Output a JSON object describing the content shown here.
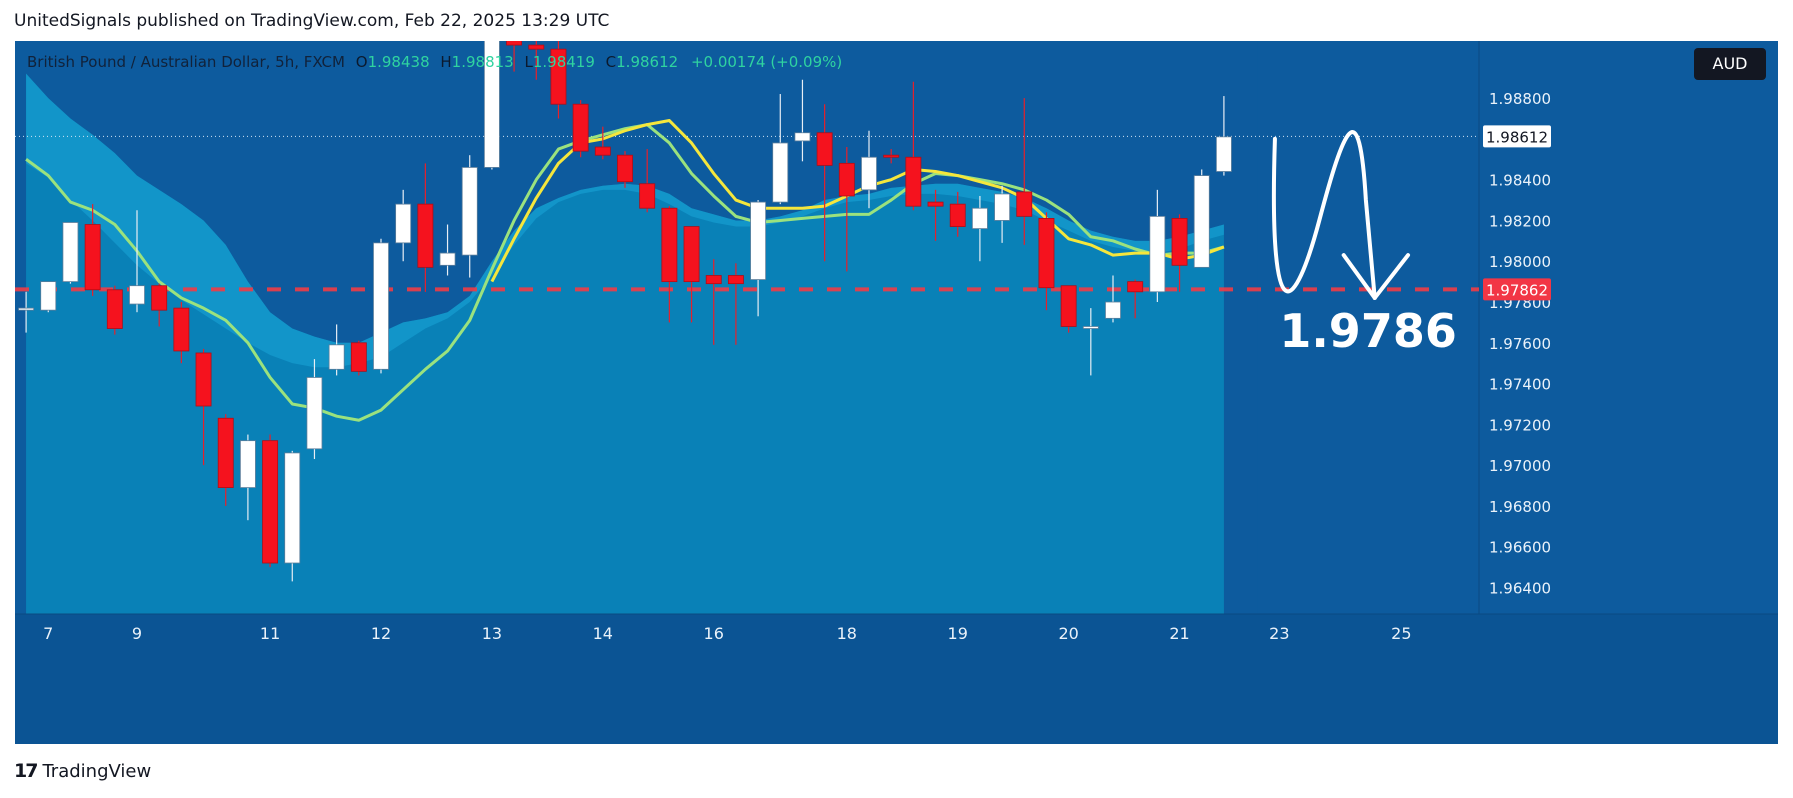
{
  "publisher_line": "UnitedSignals published on TradingView.com, Feb 22, 2025 13:29 UTC",
  "header": {
    "symbol": "British Pound / Australian Dollar, 5h, FXCM",
    "open_label": "O",
    "open": "1.98438",
    "high_label": "H",
    "high": "1.98813",
    "low_label": "L",
    "low": "1.98419",
    "close_label": "C",
    "close": "1.98612",
    "change": "+0.00174 (+0.09%)"
  },
  "currency_badge": "AUD",
  "footer": {
    "logo": "𝟭𝟳",
    "brand": "TradingView"
  },
  "colors": {
    "background": "#0d5b9e",
    "cloud_fill": "#0a84b8",
    "up_candle": "#ffffff",
    "down_candle": "#f5121e",
    "ma_yellow": "#f5e63c",
    "ma_green": "#9be27e",
    "target_line": "#f03c46"
  },
  "chart_data": {
    "type": "candlestick",
    "symbol": "British Pound / Australian Dollar, 5h, FXCM",
    "y_ticks": [
      1.988,
      1.986,
      1.984,
      1.982,
      1.98,
      1.978,
      1.976,
      1.974,
      1.972,
      1.97,
      1.968,
      1.966,
      1.964
    ],
    "y_tick_labels": [
      "1.98800",
      "1.98600",
      "1.98400",
      "1.98200",
      "1.98000",
      "1.97800",
      "1.97600",
      "1.97400",
      "1.97200",
      "1.97000",
      "1.96800",
      "1.96600",
      "1.96400"
    ],
    "ylim": [
      1.9627,
      1.9908
    ],
    "x_labels": [
      "7",
      "9",
      "11",
      "12",
      "13",
      "14",
      "16",
      "18",
      "19",
      "20",
      "21",
      "23",
      "25"
    ],
    "x_label_index": [
      1,
      5,
      11,
      16,
      21,
      26,
      31,
      37,
      42,
      47,
      52,
      56.5,
      62
    ],
    "x_range": [
      -0.5,
      65.5
    ],
    "future_start_index": 55.5,
    "candles": [
      [
        1.9777,
        1.9777,
        1.9785,
        1.9765
      ],
      [
        1.9776,
        1.979,
        1.979,
        1.9775
      ],
      [
        1.979,
        1.9819,
        1.9819,
        1.9789
      ],
      [
        1.9818,
        1.9786,
        1.9828,
        1.9783
      ],
      [
        1.9786,
        1.9767,
        1.9788,
        1.9764
      ],
      [
        1.9779,
        1.9788,
        1.9825,
        1.9775
      ],
      [
        1.9788,
        1.9776,
        1.9789,
        1.9768
      ],
      [
        1.9777,
        1.9756,
        1.978,
        1.975
      ],
      [
        1.9755,
        1.9729,
        1.9757,
        1.97
      ],
      [
        1.9723,
        1.9689,
        1.9725,
        1.968
      ],
      [
        1.9689,
        1.9712,
        1.9715,
        1.9673
      ],
      [
        1.9712,
        1.9652,
        1.9715,
        1.965
      ],
      [
        1.9652,
        1.9706,
        1.9707,
        1.9643
      ],
      [
        1.9708,
        1.9743,
        1.9752,
        1.9703
      ],
      [
        1.9747,
        1.9759,
        1.9769,
        1.9744
      ],
      [
        1.976,
        1.9746,
        1.9761,
        1.9744
      ],
      [
        1.9747,
        1.9809,
        1.9811,
        1.9745
      ],
      [
        1.9809,
        1.9828,
        1.9835,
        1.98
      ],
      [
        1.9828,
        1.9797,
        1.9848,
        1.9785
      ],
      [
        1.9798,
        1.9804,
        1.9818,
        1.9793
      ],
      [
        1.9803,
        1.9846,
        1.9852,
        1.9792
      ],
      [
        1.9846,
        1.9909,
        1.9918,
        1.9845
      ],
      [
        1.9909,
        1.9906,
        1.992,
        1.9893
      ],
      [
        1.9906,
        1.9904,
        1.9912,
        1.9889
      ],
      [
        1.9904,
        1.9877,
        1.991,
        1.987
      ],
      [
        1.9877,
        1.9854,
        1.9879,
        1.9851
      ],
      [
        1.9856,
        1.9852,
        1.9866,
        1.985
      ],
      [
        1.9852,
        1.9839,
        1.9854,
        1.9836
      ],
      [
        1.9838,
        1.9826,
        1.9855,
        1.9824
      ],
      [
        1.9826,
        1.979,
        1.9827,
        1.977
      ],
      [
        1.9817,
        1.979,
        1.9817,
        1.977
      ],
      [
        1.9793,
        1.9789,
        1.9801,
        1.9759
      ],
      [
        1.9793,
        1.9789,
        1.9799,
        1.9759
      ],
      [
        1.9791,
        1.9829,
        1.983,
        1.9773
      ],
      [
        1.9829,
        1.9858,
        1.9882,
        1.9828
      ],
      [
        1.9859,
        1.9863,
        1.9889,
        1.9849
      ],
      [
        1.9863,
        1.9847,
        1.9877,
        1.98
      ],
      [
        1.9848,
        1.9832,
        1.9856,
        1.9795
      ],
      [
        1.9835,
        1.9851,
        1.9864,
        1.9826
      ],
      [
        1.9852,
        1.9851,
        1.9855,
        1.9848
      ],
      [
        1.9851,
        1.9827,
        1.9888,
        1.9825
      ],
      [
        1.9829,
        1.9827,
        1.9835,
        1.981
      ],
      [
        1.9828,
        1.9817,
        1.9834,
        1.9812
      ],
      [
        1.9816,
        1.9826,
        1.9832,
        1.98
      ],
      [
        1.982,
        1.9833,
        1.9837,
        1.9809
      ],
      [
        1.9834,
        1.9822,
        1.988,
        1.9808
      ],
      [
        1.9821,
        1.9787,
        1.9824,
        1.9776
      ],
      [
        1.9788,
        1.9768,
        1.9788,
        1.9765
      ],
      [
        1.9767,
        1.9768,
        1.9777,
        1.9744
      ],
      [
        1.9772,
        1.978,
        1.9793,
        1.977
      ],
      [
        1.979,
        1.9785,
        1.9791,
        1.9772
      ],
      [
        1.9785,
        1.9822,
        1.9835,
        1.978
      ],
      [
        1.9821,
        1.9798,
        1.9823,
        1.9785
      ],
      [
        1.9797,
        1.9842,
        1.9845,
        1.9797
      ],
      [
        1.9844,
        1.9861,
        1.9881,
        1.9842
      ]
    ],
    "ma_green": [
      1.985,
      1.9842,
      1.9829,
      1.9825,
      1.9818,
      1.9805,
      1.979,
      1.9782,
      1.9777,
      1.9771,
      1.976,
      1.9743,
      1.973,
      1.9728,
      1.9724,
      1.9722,
      1.9727,
      1.9737,
      1.9747,
      1.9756,
      1.9771,
      1.9796,
      1.982,
      1.984,
      1.9855,
      1.9859,
      1.9862,
      1.9865,
      1.9867,
      1.9858,
      1.9843,
      1.9832,
      1.9822,
      1.9819,
      1.982,
      1.9821,
      1.9822,
      1.9823,
      1.9823,
      1.983,
      1.9838,
      1.9843,
      1.9842,
      1.984,
      1.9838,
      1.9835,
      1.983,
      1.9823,
      1.9812,
      1.981,
      1.9806,
      1.9803,
      1.9804,
      1.9804,
      1.9807
    ],
    "ma_yellow_start": 21,
    "ma_yellow": [
      1.979,
      1.9811,
      1.9831,
      1.9848,
      1.9858,
      1.986,
      1.9864,
      1.9867,
      1.9869,
      1.9858,
      1.9843,
      1.983,
      1.9826,
      1.9826,
      1.9826,
      1.9827,
      1.9832,
      1.9837,
      1.984,
      1.9845,
      1.9844,
      1.9842,
      1.9839,
      1.9836,
      1.9831,
      1.9821,
      1.9811,
      1.9808,
      1.9803,
      1.9804,
      1.9804,
      1.9801,
      1.9803,
      1.9807
    ],
    "cloud_upper": [
      1.9892,
      1.988,
      1.987,
      1.9862,
      1.9853,
      1.9842,
      1.9835,
      1.9828,
      1.982,
      1.9808,
      1.979,
      1.9775,
      1.9767,
      1.9763,
      1.976,
      1.976,
      1.9765,
      1.977,
      1.9772,
      1.9775,
      1.9783,
      1.98,
      1.9815,
      1.9826,
      1.9831,
      1.9835,
      1.9837,
      1.9838,
      1.9837,
      1.9833,
      1.9826,
      1.9823,
      1.982,
      1.982,
      1.9822,
      1.9825,
      1.983,
      1.9832,
      1.9833,
      1.9836,
      1.9837,
      1.9838,
      1.9838,
      1.9836,
      1.9834,
      1.9831,
      1.9826,
      1.982,
      1.9815,
      1.9812,
      1.981,
      1.981,
      1.9812,
      1.9815,
      1.9818
    ],
    "cloud_lower": [
      1.9848,
      1.9841,
      1.983,
      1.982,
      1.9809,
      1.9798,
      1.9789,
      1.9781,
      1.9774,
      1.9767,
      1.976,
      1.9754,
      1.975,
      1.9748,
      1.9748,
      1.975,
      1.9753,
      1.976,
      1.9767,
      1.9772,
      1.978,
      1.9793,
      1.9808,
      1.9821,
      1.9829,
      1.9833,
      1.9835,
      1.9835,
      1.9833,
      1.9828,
      1.9822,
      1.9819,
      1.9817,
      1.9817,
      1.9819,
      1.9822,
      1.9826,
      1.9829,
      1.983,
      1.9832,
      1.9833,
      1.9833,
      1.9832,
      1.983,
      1.9828,
      1.9825,
      1.982,
      1.9815,
      1.981,
      1.9807,
      1.9805,
      1.9804,
      1.9806,
      1.981,
      1.9813
    ],
    "last_price": 1.98612,
    "last_price_label": "1.98612",
    "target_price": 1.97862,
    "target_price_label": "1.97862",
    "annotation_text": "1.9786",
    "annotation_anchor": [
      60.5,
      1.9758
    ]
  }
}
